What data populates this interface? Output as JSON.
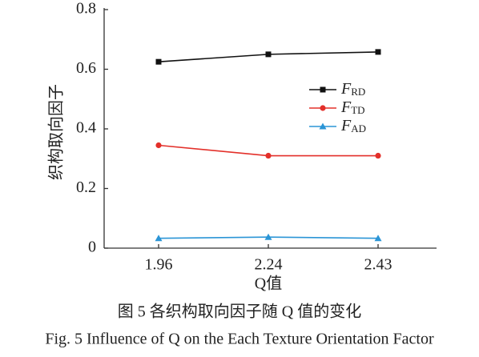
{
  "chart_data": {
    "type": "line",
    "categories": [
      "1.96",
      "2.24",
      "2.43"
    ],
    "series": [
      {
        "name": "FRD",
        "color": "#111111",
        "marker": "square",
        "values": [
          0.625,
          0.65,
          0.658
        ]
      },
      {
        "name": "FTD",
        "color": "#e3302a",
        "marker": "circle",
        "values": [
          0.345,
          0.31,
          0.31
        ]
      },
      {
        "name": "FAD",
        "color": "#2b95d6",
        "marker": "triangle",
        "values": [
          0.033,
          0.037,
          0.033
        ]
      }
    ],
    "ylim": [
      0,
      0.8
    ],
    "yticks": [
      0,
      0.2,
      0.4,
      0.6,
      0.8
    ],
    "xlabel": "Q值",
    "ylabel": "织构取向因子",
    "caption_cn": "图 5  各织构取向因子随 Q 值的变化",
    "caption_en": "Fig. 5  Influence of Q on the Each Texture Orientation Factor"
  }
}
